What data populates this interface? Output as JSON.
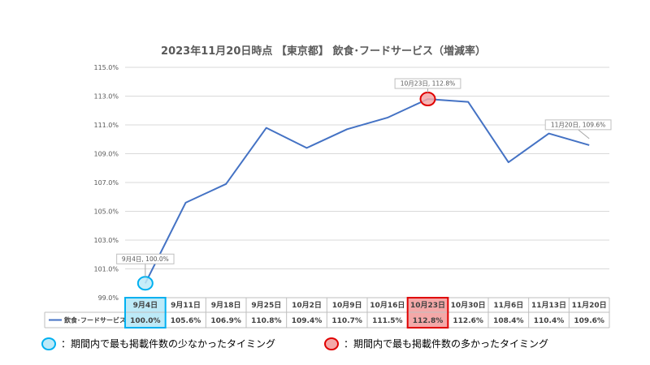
{
  "chart_data": {
    "type": "line",
    "title": "2023年11月20日時点 【東京都】 飲食･フードサービス（増減率）",
    "categories": [
      "9月4日",
      "9月11日",
      "9月18日",
      "9月25日",
      "10月2日",
      "10月9日",
      "10月16日",
      "10月23日",
      "10月30日",
      "11月6日",
      "11月13日",
      "11月20日"
    ],
    "series": [
      {
        "name": "飲食･フードサービス",
        "values": [
          100.0,
          105.6,
          106.9,
          110.8,
          109.4,
          110.7,
          111.5,
          112.8,
          112.6,
          108.4,
          110.4,
          109.6
        ],
        "labels": [
          "100.0%",
          "105.6%",
          "106.9%",
          "110.8%",
          "109.4%",
          "110.7%",
          "111.5%",
          "112.8%",
          "112.6%",
          "108.4%",
          "110.4%",
          "109.6%"
        ],
        "color": "#4472c4"
      }
    ],
    "yticks": [
      "99.0%",
      "101.0%",
      "103.0%",
      "105.0%",
      "107.0%",
      "109.0%",
      "111.0%",
      "113.0%",
      "115.0%"
    ],
    "ylim": [
      99,
      115
    ],
    "grid": true,
    "annotations": [
      {
        "index": 0,
        "text": "9月4日, 100.0%"
      },
      {
        "index": 7,
        "text": "10月23日, 112.8%"
      },
      {
        "index": 11,
        "text": "11月20日, 109.6%"
      }
    ],
    "min_index": 0,
    "max_index": 7,
    "colors": {
      "min": "#00b0f0",
      "min_fill": "#bdeaf8",
      "max": "#e00000",
      "max_fill": "#f4a8a8"
    }
  },
  "legend": {
    "min_label": "：期間内で最も掲載件数の少なかったタイミング",
    "max_label": "：期間内で最も掲載件数の多かったタイミング"
  }
}
